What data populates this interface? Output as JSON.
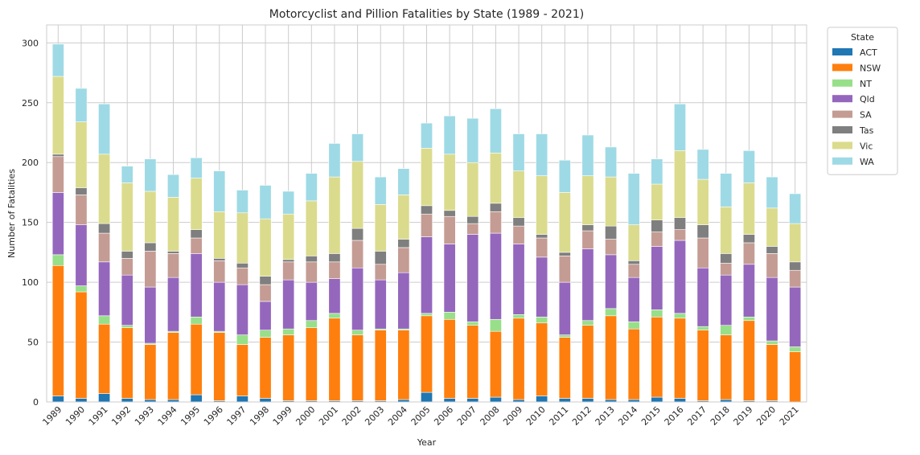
{
  "chart_data": {
    "type": "bar",
    "stacked": true,
    "title": "Motorcyclist and Pillion Fatalities by State (1989 - 2021)",
    "xlabel": "Year",
    "ylabel": "Number of Fatalities",
    "ylim": [
      0,
      315
    ],
    "yticks": [
      0,
      50,
      100,
      150,
      200,
      250,
      300
    ],
    "grid": true,
    "legend_title": "State",
    "legend_position": "outside-top-right",
    "categories": [
      "1989",
      "1990",
      "1991",
      "1992",
      "1993",
      "1994",
      "1995",
      "1996",
      "1997",
      "1998",
      "1999",
      "2000",
      "2001",
      "2002",
      "2003",
      "2004",
      "2005",
      "2006",
      "2007",
      "2008",
      "2009",
      "2010",
      "2011",
      "2012",
      "2013",
      "2014",
      "2015",
      "2016",
      "2017",
      "2018",
      "2019",
      "2020",
      "2021"
    ],
    "series": [
      {
        "name": "ACT",
        "color": "#1f77b4",
        "values": [
          5,
          3,
          7,
          3,
          2,
          2,
          6,
          1,
          5,
          3,
          1,
          1,
          1,
          1,
          1,
          2,
          8,
          3,
          3,
          4,
          2,
          5,
          3,
          3,
          2,
          2,
          4,
          3,
          1,
          2,
          1,
          1,
          0
        ]
      },
      {
        "name": "NSW",
        "color": "#ff7f0e",
        "values": [
          109,
          89,
          58,
          59,
          46,
          56,
          59,
          57,
          43,
          51,
          55,
          61,
          69,
          55,
          59,
          58,
          64,
          66,
          61,
          55,
          68,
          61,
          51,
          61,
          70,
          59,
          67,
          67,
          59,
          54,
          67,
          47,
          42
        ]
      },
      {
        "name": "NT",
        "color": "#98df8a",
        "values": [
          9,
          5,
          7,
          2,
          1,
          1,
          6,
          1,
          8,
          6,
          5,
          6,
          4,
          4,
          1,
          1,
          2,
          6,
          3,
          10,
          3,
          5,
          2,
          4,
          6,
          6,
          6,
          4,
          3,
          8,
          3,
          3,
          4
        ]
      },
      {
        "name": "Qld",
        "color": "#9467bd",
        "values": [
          52,
          51,
          45,
          42,
          47,
          45,
          53,
          41,
          42,
          24,
          41,
          32,
          29,
          52,
          41,
          47,
          64,
          57,
          73,
          72,
          59,
          50,
          44,
          60,
          45,
          37,
          53,
          61,
          49,
          42,
          44,
          53,
          50
        ]
      },
      {
        "name": "SA",
        "color": "#c49c94",
        "values": [
          30,
          25,
          24,
          14,
          30,
          20,
          13,
          18,
          14,
          14,
          15,
          17,
          14,
          23,
          13,
          21,
          19,
          23,
          9,
          18,
          15,
          16,
          22,
          15,
          13,
          11,
          12,
          9,
          25,
          10,
          18,
          20,
          14
        ]
      },
      {
        "name": "Tas",
        "color": "#7f7f7f",
        "values": [
          2,
          6,
          8,
          6,
          7,
          2,
          7,
          2,
          4,
          7,
          2,
          5,
          7,
          10,
          11,
          7,
          7,
          5,
          6,
          7,
          7,
          3,
          3,
          5,
          11,
          3,
          10,
          10,
          11,
          8,
          7,
          6,
          7
        ]
      },
      {
        "name": "Vic",
        "color": "#dbdb8d",
        "values": [
          65,
          55,
          58,
          57,
          43,
          45,
          43,
          39,
          42,
          48,
          38,
          46,
          64,
          56,
          39,
          37,
          48,
          47,
          45,
          42,
          39,
          49,
          50,
          41,
          41,
          30,
          30,
          56,
          38,
          39,
          43,
          32,
          32
        ]
      },
      {
        "name": "WA",
        "color": "#9edae5",
        "values": [
          27,
          28,
          42,
          14,
          27,
          19,
          17,
          34,
          19,
          28,
          19,
          23,
          28,
          23,
          23,
          22,
          21,
          32,
          37,
          37,
          31,
          35,
          27,
          34,
          25,
          43,
          21,
          39,
          25,
          28,
          27,
          26,
          25
        ]
      }
    ]
  }
}
